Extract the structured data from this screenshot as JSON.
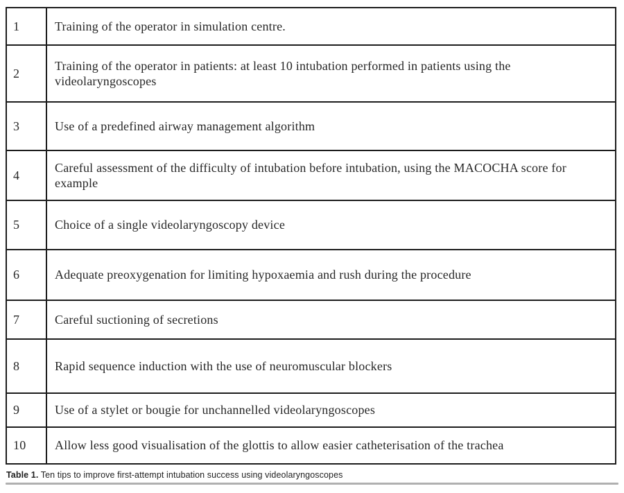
{
  "table": {
    "rows": [
      {
        "num": "1",
        "text": "Training of the operator in simulation centre."
      },
      {
        "num": "2",
        "text": "Training of the operator in patients: at least 10 intubation performed in patients using the videolaryngoscopes"
      },
      {
        "num": "3",
        "text": "Use of a predefined airway management algorithm"
      },
      {
        "num": "4",
        "text": "Careful assessment of the difficulty of intubation before intubation, using the MACOCHA score for example"
      },
      {
        "num": "5",
        "text": "Choice of a single videolaryngoscopy device"
      },
      {
        "num": "6",
        "text": "Adequate preoxygenation for limiting hypoxaemia and rush during the procedure"
      },
      {
        "num": "7",
        "text": "Careful suctioning of secretions"
      },
      {
        "num": "8",
        "text": "Rapid sequence induction with the use of neuromuscular blockers"
      },
      {
        "num": "9",
        "text": "Use of a stylet or bougie for unchannelled videolaryngoscopes"
      },
      {
        "num": "10",
        "text": "Allow less good visualisation of the glottis to allow easier catheterisation of the trachea"
      }
    ]
  },
  "caption": {
    "label": "Table 1.",
    "text": "Ten tips to improve first-attempt intubation success using videolaryngoscopes"
  },
  "colors": {
    "table_border": "#1c1c1c",
    "body_text": "#262626",
    "caption_rule": "#b0b0b0"
  }
}
